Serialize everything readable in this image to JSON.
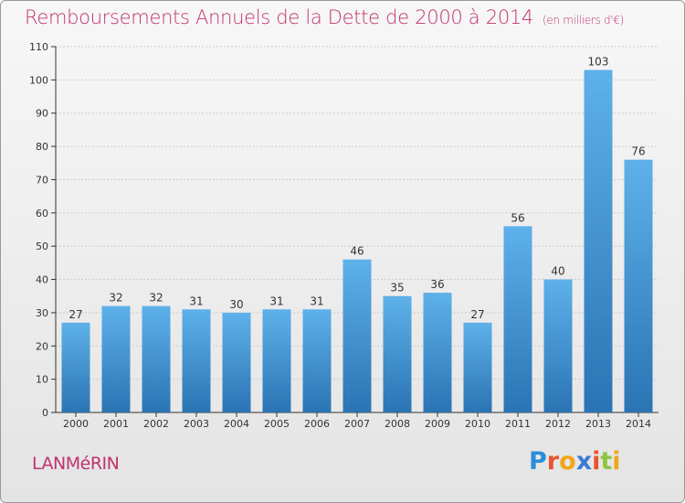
{
  "colors": {
    "title": "#c0336e",
    "bar_top": "#5eb1ea",
    "bar_bottom": "#2a74b4",
    "axis": "#333333",
    "grid": "#cccccc"
  },
  "header": {
    "title": "Remboursements Annuels de la Dette de 2000 à 2014",
    "subtitle": "(en milliers d'€)"
  },
  "footer": {
    "town": "LANMéRIN",
    "logo": {
      "letters": [
        "P",
        "r",
        "o",
        "x",
        "i",
        "t",
        "i"
      ],
      "colors": [
        "#2a8fd8",
        "#e8542e",
        "#f2a51a",
        "#3a7ad6",
        "#e8542e",
        "#8cc63e",
        "#f2a51a"
      ]
    }
  },
  "chart_data": {
    "type": "bar",
    "title": "Remboursements Annuels de la Dette de 2000 à 2014",
    "subtitle": "(en milliers d'€)",
    "categories": [
      "2000",
      "2001",
      "2002",
      "2003",
      "2004",
      "2005",
      "2006",
      "2007",
      "2008",
      "2009",
      "2010",
      "2011",
      "2012",
      "2013",
      "2014"
    ],
    "values": [
      27,
      32,
      32,
      31,
      30,
      31,
      31,
      46,
      35,
      36,
      27,
      56,
      40,
      103,
      76
    ],
    "ylim": [
      0,
      110
    ],
    "yticks": [
      0,
      10,
      20,
      30,
      40,
      50,
      60,
      70,
      80,
      90,
      100,
      110
    ],
    "grid": true,
    "legend": "none"
  }
}
